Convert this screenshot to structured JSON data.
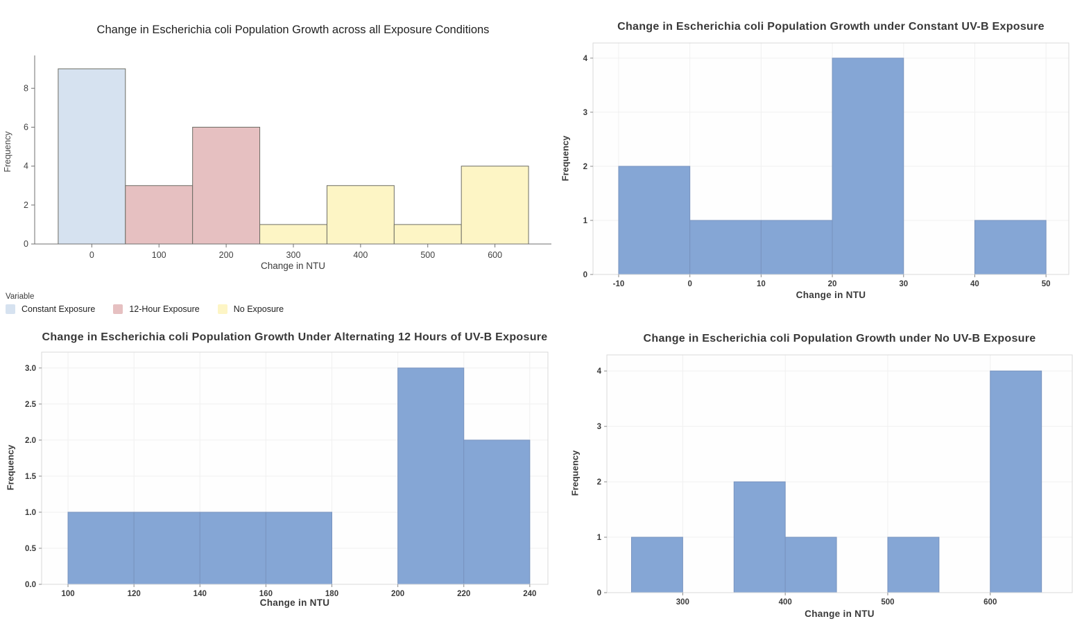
{
  "page": {
    "background": "#ffffff"
  },
  "legend": {
    "title": "Variable",
    "items": [
      {
        "label": "Constant Exposure",
        "color": "#d6e2f0"
      },
      {
        "label": "12-Hour Exposure",
        "color": "#e6c0c1"
      },
      {
        "label": "No Exposure",
        "color": "#fdf5c5"
      }
    ]
  },
  "chart_data": [
    {
      "type": "bar",
      "subtype": "histogram",
      "title": "Change in Escherichia coli Population Growth across all Exposure Conditions",
      "xlabel": "Change in NTU",
      "ylabel": "Frequency",
      "grid": false,
      "legend_position": "bottom-left",
      "bar_edge": "#6d6d64",
      "bins": [
        {
          "x0": -50,
          "x1": 50,
          "count": 9,
          "series": "Constant Exposure"
        },
        {
          "x0": 50,
          "x1": 150,
          "count": 3,
          "series": "12-Hour Exposure"
        },
        {
          "x0": 150,
          "x1": 250,
          "count": 6,
          "series": "12-Hour Exposure"
        },
        {
          "x0": 250,
          "x1": 350,
          "count": 1,
          "series": "No Exposure"
        },
        {
          "x0": 350,
          "x1": 450,
          "count": 3,
          "series": "No Exposure"
        },
        {
          "x0": 450,
          "x1": 550,
          "count": 1,
          "series": "No Exposure"
        },
        {
          "x0": 550,
          "x1": 650,
          "count": 4,
          "series": "No Exposure"
        }
      ],
      "xticks": [
        "0",
        "100",
        "200",
        "300",
        "400",
        "500",
        "600"
      ],
      "yticks": [
        "0",
        "2",
        "4",
        "6",
        "8"
      ],
      "xlim": [
        -85,
        684
      ],
      "ylim": [
        0,
        9.4
      ]
    },
    {
      "type": "bar",
      "subtype": "histogram",
      "title": "Change in Escherichia coli Population Growth under Constant UV-B Exposure",
      "xlabel": "Change in NTU",
      "ylabel": "Frequency",
      "grid": true,
      "bar_color": "#85a6d5",
      "bar_edge": "#7893bf",
      "bins": [
        {
          "x0": -10,
          "x1": 0,
          "count": 2
        },
        {
          "x0": 0,
          "x1": 10,
          "count": 1
        },
        {
          "x0": 10,
          "x1": 20,
          "count": 1
        },
        {
          "x0": 20,
          "x1": 30,
          "count": 4
        },
        {
          "x0": 40,
          "x1": 50,
          "count": 1
        }
      ],
      "xticks": [
        "-10",
        "0",
        "10",
        "20",
        "30",
        "40",
        "50"
      ],
      "yticks": [
        "0",
        "1",
        "2",
        "3",
        "4"
      ],
      "xlim": [
        -13.6,
        53.2
      ],
      "ylim": [
        0,
        4.28
      ]
    },
    {
      "type": "bar",
      "subtype": "histogram",
      "title": "Change in Escherichia coli Population Growth Under Alternating 12 Hours of UV-B Exposure",
      "xlabel": "Change in NTU",
      "ylabel": "Frequency",
      "grid": true,
      "bar_color": "#85a6d5",
      "bar_edge": "#7893bf",
      "bins": [
        {
          "x0": 100,
          "x1": 120,
          "count": 1
        },
        {
          "x0": 120,
          "x1": 140,
          "count": 1
        },
        {
          "x0": 140,
          "x1": 160,
          "count": 1
        },
        {
          "x0": 160,
          "x1": 180,
          "count": 1
        },
        {
          "x0": 200,
          "x1": 220,
          "count": 3
        },
        {
          "x0": 220,
          "x1": 240,
          "count": 2
        }
      ],
      "xticks": [
        "100",
        "120",
        "140",
        "160",
        "180",
        "200",
        "220",
        "240"
      ],
      "yticks": [
        "0.0",
        "0.5",
        "1.0",
        "1.5",
        "2.0",
        "2.5",
        "3.0"
      ],
      "xlim": [
        92,
        245.5
      ],
      "ylim": [
        0,
        3.22
      ]
    },
    {
      "type": "bar",
      "subtype": "histogram",
      "title": "Change in Escherichia coli Population Growth under No UV-B Exposure",
      "xlabel": "Change in NTU",
      "ylabel": "Frequency",
      "grid": true,
      "bar_color": "#85a6d5",
      "bar_edge": "#7893bf",
      "bins": [
        {
          "x0": 250,
          "x1": 300,
          "count": 1
        },
        {
          "x0": 350,
          "x1": 400,
          "count": 2
        },
        {
          "x0": 400,
          "x1": 450,
          "count": 1
        },
        {
          "x0": 500,
          "x1": 550,
          "count": 1
        },
        {
          "x0": 600,
          "x1": 650,
          "count": 4
        }
      ],
      "xticks": [
        "300",
        "400",
        "500",
        "600"
      ],
      "yticks": [
        "0",
        "1",
        "2",
        "3",
        "4"
      ],
      "xlim": [
        226,
        680
      ],
      "ylim": [
        0,
        4.29
      ]
    }
  ]
}
